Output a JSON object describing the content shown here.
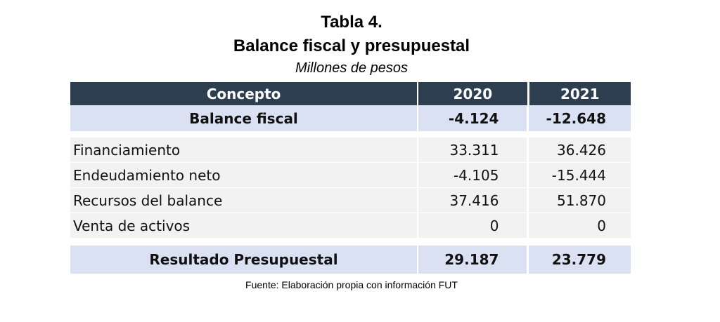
{
  "title": "Tabla 4.",
  "subtitle": "Balance fiscal y presupuestal",
  "units": "Millones de pesos",
  "headers": [
    "Concepto",
    "2020",
    "2021"
  ],
  "balance": {
    "label": "Balance fiscal",
    "v2020": "-4.124",
    "v2021": "-12.648"
  },
  "rows": [
    {
      "label": "Financiamiento",
      "v2020": "33.311",
      "v2021": "36.426"
    },
    {
      "label": "Endeudamiento neto",
      "v2020": "-4.105",
      "v2021": "-15.444"
    },
    {
      "label": "Recursos del balance",
      "v2020": "37.416",
      "v2021": "51.870"
    },
    {
      "label": "Venta de activos",
      "v2020": "0",
      "v2021": "0"
    }
  ],
  "result": {
    "label": "Resultado Presupuestal",
    "v2020": "29.187",
    "v2021": "23.779"
  },
  "source": "Fuente: Elaboración propia con información FUT"
}
